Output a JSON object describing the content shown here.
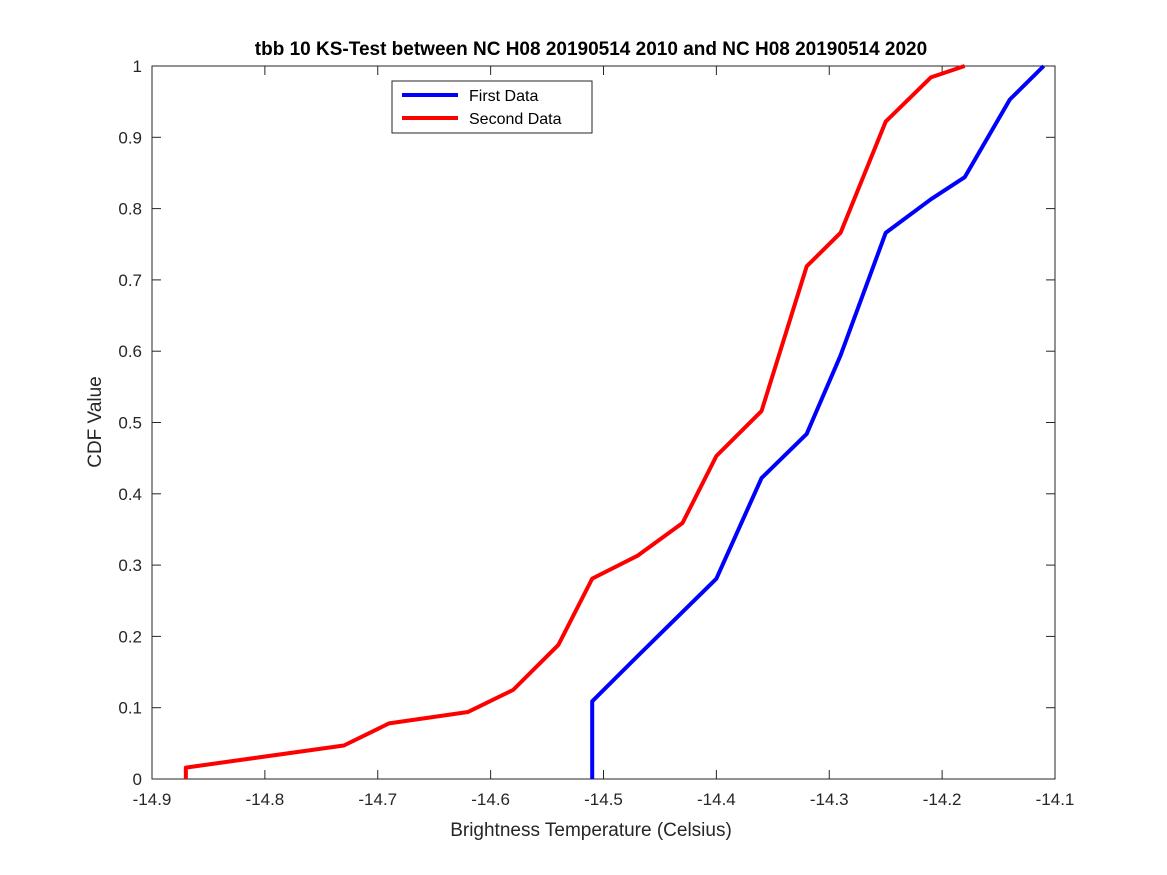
{
  "chart_data": {
    "type": "line",
    "title": "tbb 10 KS-Test between NC H08 20190514 2010 and NC H08 20190514 2020",
    "xlabel": "Brightness Temperature (Celsius)",
    "ylabel": "CDF Value",
    "xlim": [
      -14.9,
      -14.1
    ],
    "ylim": [
      0,
      1
    ],
    "xticks": [
      -14.9,
      -14.8,
      -14.7,
      -14.6,
      -14.5,
      -14.4,
      -14.3,
      -14.2,
      -14.1
    ],
    "xtick_labels": [
      "-14.9",
      "-14.8",
      "-14.7",
      "-14.6",
      "-14.5",
      "-14.4",
      "-14.3",
      "-14.2",
      "-14.1"
    ],
    "yticks": [
      0,
      0.1,
      0.2,
      0.3,
      0.4,
      0.5,
      0.6,
      0.7,
      0.8,
      0.9,
      1
    ],
    "ytick_labels": [
      "0",
      "0.1",
      "0.2",
      "0.3",
      "0.4",
      "0.5",
      "0.6",
      "0.7",
      "0.8",
      "0.9",
      "1"
    ],
    "grid": false,
    "legend_position": "top-center",
    "series": [
      {
        "name": "First Data",
        "color": "#0000ff",
        "x": [
          -14.51,
          -14.51,
          -14.47,
          -14.4,
          -14.36,
          -14.32,
          -14.29,
          -14.25,
          -14.21,
          -14.18,
          -14.14,
          -14.11
        ],
        "y": [
          0,
          0.109,
          0.172,
          0.281,
          0.422,
          0.484,
          0.594,
          0.766,
          0.813,
          0.844,
          0.953,
          1.0
        ]
      },
      {
        "name": "Second Data",
        "color": "#ff0000",
        "x": [
          -14.87,
          -14.87,
          -14.73,
          -14.69,
          -14.62,
          -14.58,
          -14.54,
          -14.51,
          -14.47,
          -14.43,
          -14.4,
          -14.36,
          -14.32,
          -14.29,
          -14.25,
          -14.21,
          -14.18
        ],
        "y": [
          0,
          0.016,
          0.047,
          0.078,
          0.094,
          0.125,
          0.188,
          0.281,
          0.313,
          0.359,
          0.453,
          0.516,
          0.719,
          0.766,
          0.922,
          0.984,
          1.0
        ]
      }
    ]
  }
}
